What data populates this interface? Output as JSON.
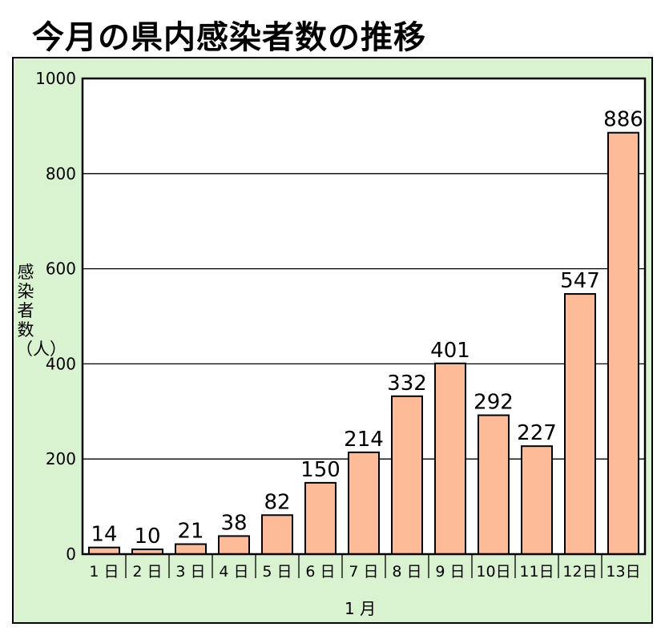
{
  "title": "今月の県内感染者数の推移",
  "chart_data": {
    "type": "bar",
    "title": "今月の県内感染者数の推移",
    "xlabel": "1 月",
    "ylabel": "感染者数（人）",
    "ylim": [
      0,
      1000
    ],
    "yticks": [
      "0",
      "200",
      "400",
      "600",
      "800",
      "1000"
    ],
    "categories": [
      "1 日",
      "2 日",
      "3 日",
      "4 日",
      "5 日",
      "6 日",
      "7 日",
      "8 日",
      "9 日",
      "10日",
      "11日",
      "12日",
      "13日"
    ],
    "values": [
      14,
      10,
      21,
      38,
      82,
      150,
      214,
      332,
      401,
      292,
      227,
      547,
      886
    ],
    "data_labels": [
      "14",
      "10",
      "21",
      "38",
      "82",
      "150",
      "214",
      "332",
      "401",
      "292",
      "227",
      "547",
      "886"
    ],
    "bar_color": "#fdbb97",
    "background_color": "#d9f2cf",
    "plot_background": "#ffffff",
    "grid": true
  }
}
